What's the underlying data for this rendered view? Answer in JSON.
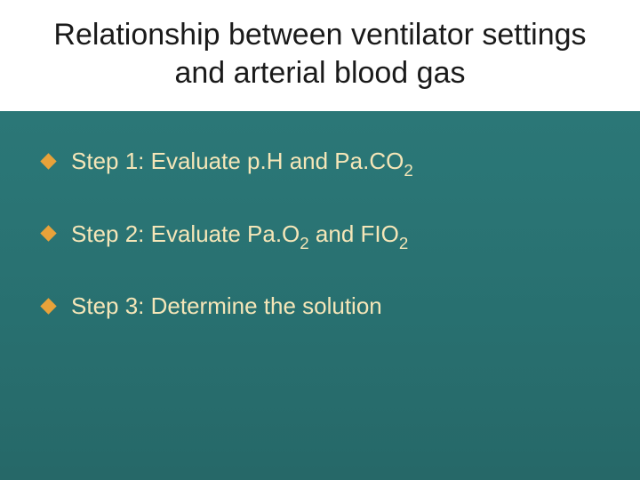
{
  "slide": {
    "title": "Relationship between ventilator settings and arterial blood gas",
    "title_color": "#1a1a1a",
    "title_bg": "#ffffff",
    "title_fontsize": 34,
    "background_gradient": [
      "#2d7a7a",
      "#266868"
    ],
    "bullet_color": "#e8a23a",
    "text_color": "#f5e6b8",
    "text_fontsize": 26,
    "bullets": [
      {
        "prefix": "Step 1: Evaluate p.H and Pa.CO",
        "sub": "2",
        "suffix": ""
      },
      {
        "prefix": "Step 2: Evaluate Pa.O",
        "sub": "2",
        "mid": " and FIO",
        "sub2": "2",
        "suffix": ""
      },
      {
        "prefix": "Step 3: Determine the solution",
        "sub": "",
        "suffix": ""
      }
    ]
  }
}
